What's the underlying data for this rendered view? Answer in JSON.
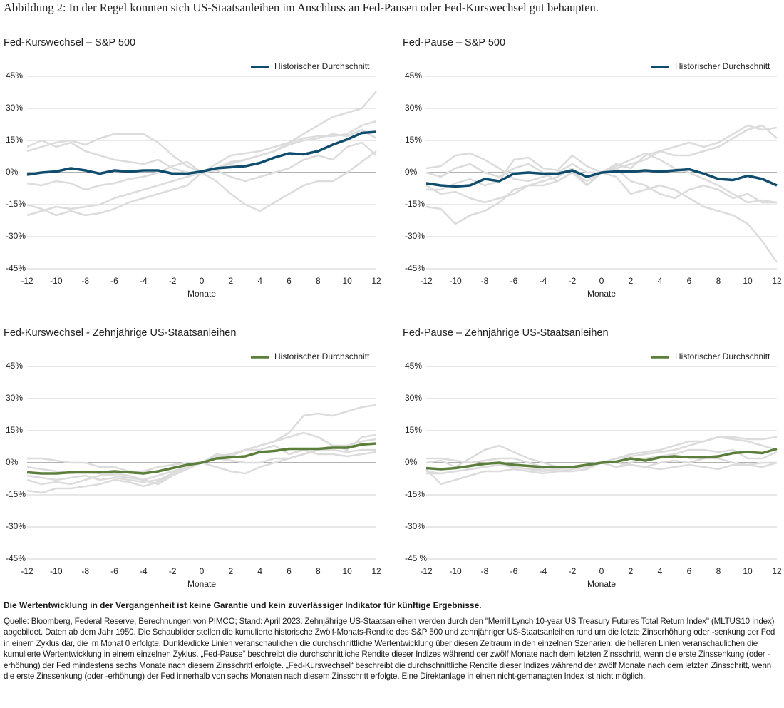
{
  "figure_title": "Abbildung 2: In der Regel konnten sich US-Staatsanleihen im Anschluss an Fed-Pausen oder Fed-Kurswechsel gut behaupten.",
  "chart_data": [
    {
      "type": "line",
      "title": "Fed-Kurswechsel – S&P 500",
      "x_label": "Monate",
      "x": [
        -12,
        -11,
        -10,
        -9,
        -8,
        -7,
        -6,
        -5,
        -4,
        -3,
        -2,
        -1,
        0,
        1,
        2,
        3,
        4,
        5,
        6,
        7,
        8,
        9,
        10,
        11,
        12
      ],
      "xlim": [
        -12,
        12
      ],
      "xticks": [
        -12,
        -10,
        -8,
        -6,
        -4,
        -2,
        0,
        2,
        4,
        6,
        8,
        10,
        12
      ],
      "ylim": [
        -45,
        45
      ],
      "yticks": [
        {
          "value": -45,
          "label": "-45%"
        },
        {
          "value": -30,
          "label": "-30%"
        },
        {
          "value": -15,
          "label": "-15%"
        },
        {
          "value": 0,
          "label": "0%"
        },
        {
          "value": 15,
          "label": "15%"
        },
        {
          "value": 30,
          "label": "30%"
        },
        {
          "value": 45,
          "label": "45%"
        }
      ],
      "grid": true,
      "legend": "top-right",
      "series": [
        {
          "color": "#dcdcdc",
          "values": [
            12,
            15,
            12,
            14,
            10,
            8,
            6,
            5,
            4,
            6,
            2,
            0,
            0,
            2,
            4,
            6,
            8,
            10,
            14,
            18,
            22,
            26,
            28,
            30,
            38
          ]
        },
        {
          "color": "#dcdcdc",
          "values": [
            -20,
            -18,
            -16,
            -17,
            -16,
            -15,
            -12,
            -10,
            -8,
            -6,
            -4,
            -2,
            0,
            -4,
            -10,
            -15,
            -18,
            -14,
            -10,
            -6,
            -4,
            -4,
            0,
            5,
            10
          ]
        },
        {
          "color": "#dcdcdc",
          "values": [
            10,
            12,
            14,
            15,
            13,
            16,
            18,
            18,
            18,
            14,
            8,
            3,
            0,
            4,
            8,
            9,
            10,
            12,
            14,
            16,
            17,
            17,
            18,
            22,
            24
          ]
        },
        {
          "color": "#dcdcdc",
          "values": [
            -5,
            -6,
            -4,
            -5,
            -8,
            -6,
            -5,
            -3,
            -2,
            0,
            3,
            5,
            0,
            2,
            5,
            6,
            8,
            10,
            13,
            15,
            16,
            18,
            17,
            20,
            16
          ]
        },
        {
          "color": "#dcdcdc",
          "values": [
            -15,
            -17,
            -20,
            -18,
            -20,
            -19,
            -17,
            -14,
            -12,
            -10,
            -8,
            -6,
            0,
            1,
            -2,
            -4,
            -2,
            0,
            2,
            6,
            8,
            6,
            12,
            14,
            8
          ]
        },
        {
          "name": "Historischer Durchschnitt",
          "color": "#0f4c6e",
          "values": [
            -1,
            0,
            0.5,
            2,
            1,
            -0.5,
            1,
            0.5,
            1,
            1,
            -0.5,
            -0.5,
            0.5,
            2,
            2.5,
            3,
            4.5,
            7,
            9,
            8.5,
            10,
            13,
            15.5,
            18.5,
            19
          ]
        }
      ]
    },
    {
      "type": "line",
      "title": "Fed-Pause – S&P 500",
      "x_label": "Monate",
      "x": [
        -12,
        -11,
        -10,
        -9,
        -8,
        -7,
        -6,
        -5,
        -4,
        -3,
        -2,
        -1,
        0,
        1,
        2,
        3,
        4,
        5,
        6,
        7,
        8,
        9,
        10,
        11,
        12
      ],
      "xlim": [
        -12,
        12
      ],
      "xticks": [
        -12,
        -10,
        -8,
        -6,
        -4,
        -2,
        0,
        2,
        4,
        6,
        8,
        10,
        12
      ],
      "ylim": [
        -45,
        45
      ],
      "yticks": [
        {
          "value": -45,
          "label": "-45%"
        },
        {
          "value": -30,
          "label": "-30%"
        },
        {
          "value": -15,
          "label": "-15%"
        },
        {
          "value": 0,
          "label": "0%"
        },
        {
          "value": 15,
          "label": "15%"
        },
        {
          "value": 30,
          "label": "30%"
        },
        {
          "value": 45,
          "label": "45%"
        }
      ],
      "grid": true,
      "legend": "top-right",
      "series": [
        {
          "color": "#dcdcdc",
          "values": [
            2,
            3,
            8,
            9,
            6,
            2,
            -3,
            -4,
            -2,
            0,
            4,
            0,
            0,
            3,
            6,
            9,
            6,
            2,
            0,
            -3,
            -6,
            -10,
            -14,
            -13,
            -14
          ]
        },
        {
          "color": "#dcdcdc",
          "values": [
            -16,
            -17,
            -24,
            -20,
            -18,
            -14,
            -8,
            -6,
            -4,
            -2,
            2,
            -6,
            0,
            2,
            4,
            6,
            10,
            12,
            14,
            12,
            14,
            18,
            22,
            20,
            21
          ]
        },
        {
          "color": "#dcdcdc",
          "values": [
            -8,
            -8,
            -5,
            -3,
            -6,
            -4,
            6,
            7,
            2,
            1,
            8,
            3,
            0,
            -2,
            -10,
            -8,
            -6,
            -8,
            -12,
            -16,
            -18,
            -20,
            -24,
            -32,
            -42
          ]
        },
        {
          "color": "#dcdcdc",
          "values": [
            0,
            -2,
            2,
            4,
            0,
            -2,
            2,
            4,
            0,
            -4,
            0,
            -6,
            0,
            4,
            2,
            8,
            10,
            8,
            8,
            10,
            12,
            16,
            20,
            22,
            16
          ]
        },
        {
          "color": "#dcdcdc",
          "values": [
            -6,
            -10,
            -9,
            -12,
            -14,
            -12,
            -10,
            -6,
            -6,
            -4,
            0,
            -4,
            0,
            2,
            -4,
            -6,
            -10,
            -12,
            -8,
            -6,
            -8,
            -12,
            -10,
            -14,
            -14
          ]
        },
        {
          "name": "Historischer Durchschnitt",
          "color": "#0f4c6e",
          "values": [
            -5,
            -6,
            -6.5,
            -6,
            -3,
            -4,
            -0.5,
            0,
            -0.5,
            -0.5,
            1,
            -2,
            0,
            0.5,
            0.5,
            1,
            0.5,
            1,
            1.5,
            -0.5,
            -3,
            -3.5,
            -1.5,
            -3,
            -6
          ]
        }
      ]
    },
    {
      "type": "line",
      "title": "Fed-Kurswechsel - Zehnjährige US-Staatsanleihen",
      "x_label": "Monate",
      "x": [
        -12,
        -11,
        -10,
        -9,
        -8,
        -7,
        -6,
        -5,
        -4,
        -3,
        -2,
        -1,
        0,
        1,
        2,
        3,
        4,
        5,
        6,
        7,
        8,
        9,
        10,
        11,
        12
      ],
      "xlim": [
        -12,
        12
      ],
      "xticks": [
        -12,
        -10,
        -8,
        -6,
        -4,
        -2,
        0,
        2,
        4,
        6,
        8,
        10,
        12
      ],
      "ylim": [
        -45,
        45
      ],
      "yticks": [
        {
          "value": -45,
          "label": "-45%"
        },
        {
          "value": -30,
          "label": "-30%"
        },
        {
          "value": -15,
          "label": "-15%"
        },
        {
          "value": 0,
          "label": "0%"
        },
        {
          "value": 15,
          "label": "15%"
        },
        {
          "value": 30,
          "label": "30%"
        },
        {
          "value": 45,
          "label": "45%"
        }
      ],
      "grid": true,
      "legend": "top-right",
      "series": [
        {
          "color": "#dcdcdc",
          "values": [
            -8,
            -10,
            -9,
            -10,
            -8,
            -6,
            -5,
            -6,
            -8,
            -10,
            -6,
            -3,
            0,
            2,
            4,
            6,
            8,
            10,
            14,
            22,
            23,
            22,
            24,
            26,
            27
          ]
        },
        {
          "color": "#dcdcdc",
          "values": [
            -13,
            -14,
            -12,
            -12,
            -11,
            -10,
            -8,
            -9,
            -11,
            -9,
            -5,
            -2,
            0,
            -2,
            -4,
            -5,
            -2,
            0,
            2,
            4,
            6,
            8,
            6,
            12,
            13
          ]
        },
        {
          "color": "#dcdcdc",
          "values": [
            2,
            2,
            1,
            0,
            0,
            -2,
            -2,
            -4,
            -4,
            -2,
            -1,
            0,
            0,
            4,
            3,
            6,
            6,
            8,
            4,
            6,
            4,
            4,
            3,
            4,
            5
          ]
        },
        {
          "color": "#dcdcdc",
          "values": [
            -2,
            -3,
            -4,
            -5,
            -4,
            -5,
            -6,
            -7,
            -8,
            -6,
            -4,
            -2,
            0,
            2,
            1,
            0,
            0,
            2,
            2,
            4,
            6,
            6,
            5,
            6,
            6
          ]
        },
        {
          "color": "#dcdcdc",
          "values": [
            -6,
            -7,
            -8,
            -7,
            -6,
            -8,
            -7,
            -8,
            -9,
            -8,
            -5,
            -2,
            0,
            3,
            4,
            6,
            8,
            10,
            12,
            14,
            12,
            8,
            8,
            10,
            11
          ]
        },
        {
          "name": "Historischer Durchschnitt",
          "color": "#5b7f3b",
          "values": [
            -4.5,
            -5,
            -5,
            -4.5,
            -4.5,
            -4.5,
            -4,
            -4.5,
            -5,
            -4,
            -2.5,
            -1,
            0,
            2,
            2.5,
            3,
            5,
            5.5,
            6.5,
            6.5,
            6.5,
            7,
            7,
            8.5,
            9
          ]
        }
      ]
    },
    {
      "type": "line",
      "title": "Fed-Pause – Zehnjährige US-Staatsanleihen",
      "x_label": "Monate",
      "x": [
        -12,
        -11,
        -10,
        -9,
        -8,
        -7,
        -6,
        -5,
        -4,
        -3,
        -2,
        -1,
        0,
        1,
        2,
        3,
        4,
        5,
        6,
        7,
        8,
        9,
        10,
        11,
        12
      ],
      "xlim": [
        -12,
        12
      ],
      "xticks": [
        -12,
        -10,
        -8,
        -6,
        -4,
        -2,
        0,
        2,
        4,
        6,
        8,
        10,
        12
      ],
      "ylim": [
        -45,
        45
      ],
      "yticks": [
        {
          "value": -45,
          "label": "-45 %"
        },
        {
          "value": -30,
          "label": "-30%"
        },
        {
          "value": -15,
          "label": "-15%"
        },
        {
          "value": 0,
          "label": "0%"
        },
        {
          "value": 15,
          "label": "15%"
        },
        {
          "value": 30,
          "label": "30%"
        },
        {
          "value": 45,
          "label": "45%"
        }
      ],
      "grid": true,
      "legend": "top-right",
      "series": [
        {
          "color": "#dcdcdc",
          "values": [
            0,
            1,
            -2,
            2,
            6,
            8,
            5,
            2,
            0,
            -2,
            -2,
            -2,
            0,
            2,
            4,
            5,
            6,
            8,
            10,
            10,
            12,
            12,
            11,
            11,
            12
          ]
        },
        {
          "color": "#dcdcdc",
          "values": [
            -3,
            -10,
            -8,
            -6,
            -4,
            -4,
            -3,
            -4,
            -5,
            -4,
            -3,
            -2,
            0,
            -2,
            0,
            2,
            3,
            4,
            6,
            6,
            5,
            6,
            2,
            2,
            5
          ]
        },
        {
          "color": "#dcdcdc",
          "values": [
            2,
            2,
            1,
            0,
            1,
            2,
            2,
            0,
            -2,
            -3,
            -2,
            -1,
            0,
            0,
            -1,
            -2,
            -3,
            -2,
            -1,
            -2,
            -3,
            -1,
            -1,
            -2,
            0
          ]
        },
        {
          "color": "#dcdcdc",
          "values": [
            -4,
            -5,
            -4,
            -3,
            -2,
            -1,
            -2,
            -3,
            -3,
            -4,
            -4,
            -3,
            0,
            2,
            3,
            4,
            5,
            6,
            8,
            10,
            12,
            11,
            10,
            8,
            6
          ]
        },
        {
          "color": "#dcdcdc",
          "values": [
            -5,
            -5,
            -4,
            -3,
            -2,
            -1,
            -2,
            -3,
            -4,
            -3,
            -2,
            -1,
            0,
            -2,
            -1,
            -2,
            0,
            1,
            0,
            2,
            2,
            0,
            -1,
            0,
            0
          ]
        },
        {
          "name": "Historischer Durchschnitt",
          "color": "#5b7f3b",
          "values": [
            -2.5,
            -3,
            -2.5,
            -1.5,
            -0.5,
            0,
            -1,
            -1.5,
            -2,
            -2,
            -2,
            -1,
            0,
            0.5,
            2,
            1,
            2.5,
            3,
            2.5,
            2.5,
            3,
            4.5,
            5,
            4.5,
            6.5
          ]
        }
      ]
    }
  ],
  "disclaimer": "Die Wertentwicklung in der Vergangenheit ist keine Garantie und kein zuverlässiger Indikator für künftige Ergebnisse.",
  "source": "Quelle: Bloomberg, Federal Reserve, Berechnungen von PIMCO; Stand: April 2023. Zehnjährige US-Staatsanleihen werden durch den \"Merrill Lynch 10-year US Treasury Futures Total Return Index\" (MLTUS10 Index) abgebildet. Daten ab dem Jahr 1950. Die Schaubilder stellen die kumulierte historische Zwölf-Monats-Rendite des S&P 500 und zehnjähriger US-Staatsanleihen rund um die letzte Zinserhöhung oder -senkung der Fed in einem Zyklus dar, die im Monat 0 erfolgte. Dunkle/dicke Linien veranschaulichen die durchschnittliche Wertentwicklung über diesen Zeitraum in den einzelnen Szenarien; die helleren Linien veranschaulichen die kumulierte Wertentwicklung in einem einzelnen Zyklus. „Fed-Pause“ beschreibt die durchschnittliche Rendite dieser Indizes während der zwölf Monate nach dem letzten Zinsschritt, wenn die erste Zinssenkung (oder -erhöhung) der Fed mindestens sechs Monate nach diesem Zinsschritt erfolgte. „Fed-Kurswechsel“ beschreibt die durchschnittliche Rendite dieser Indizes während der zwölf Monate nach dem letzten Zinsschritt, wenn die erste Zinssenkung (oder -erhöhung) der Fed innerhalb von sechs Monaten nach diesem Zinsschritt erfolgte. Eine Direktanlage in einen nicht-gemanagten Index ist nicht möglich."
}
